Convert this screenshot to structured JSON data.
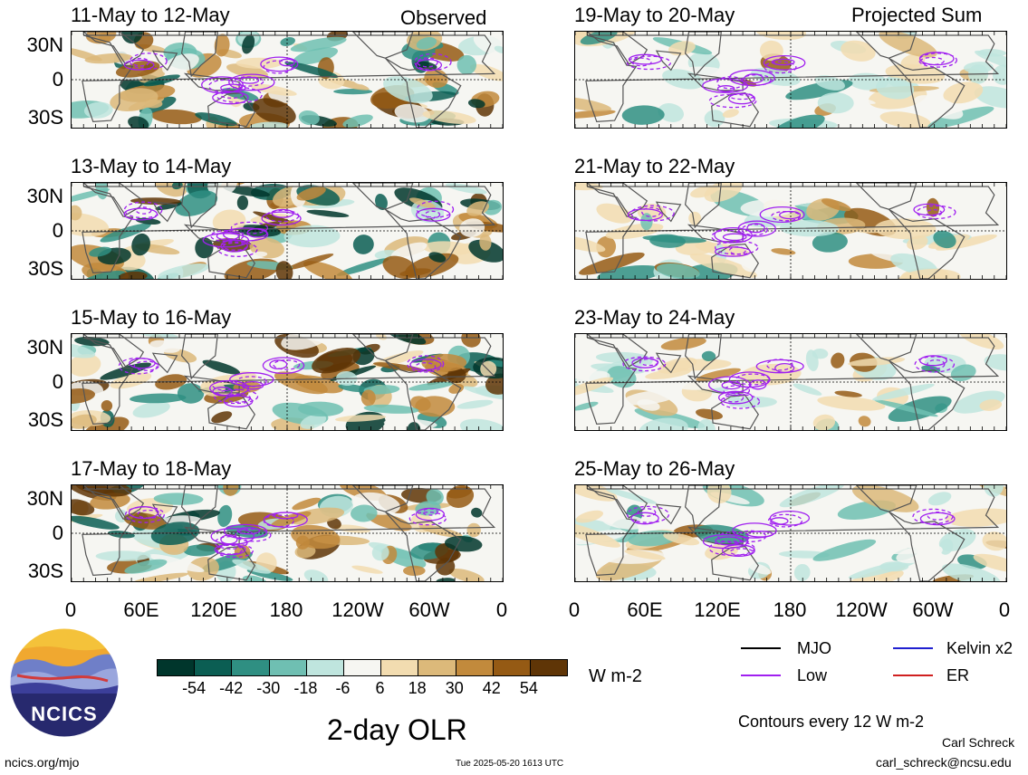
{
  "column_headers": {
    "observed": "Observed",
    "projected": "Projected Sum"
  },
  "colors": {
    "neg3": "#00473a",
    "neg2": "#1f7d6e",
    "neg1": "#7fc9bc",
    "neutral": "#f7f7f2",
    "pos1": "#f0d7a6",
    "pos2": "#c98d34",
    "pos3": "#6b3a05",
    "mjo": "#000000",
    "low": "#a020f0",
    "kelvin": "#2020d0",
    "er": "#d02020",
    "land": "#555555"
  },
  "chart_data": [
    {
      "type": "heatmap",
      "title": "11-May to 12-May",
      "kind": "observed"
    },
    {
      "type": "heatmap",
      "title": "13-May to 14-May",
      "kind": "observed"
    },
    {
      "type": "heatmap",
      "title": "15-May to 16-May",
      "kind": "observed"
    },
    {
      "type": "heatmap",
      "title": "17-May to 18-May",
      "kind": "observed"
    },
    {
      "type": "heatmap",
      "title": "19-May to 20-May",
      "kind": "projected"
    },
    {
      "type": "heatmap",
      "title": "21-May to 22-May",
      "kind": "projected"
    },
    {
      "type": "heatmap",
      "title": "23-May to 24-May",
      "kind": "projected"
    },
    {
      "type": "heatmap",
      "title": "25-May to 26-May",
      "kind": "projected"
    }
  ],
  "axes": {
    "lat_labels": [
      "30N",
      "0",
      "30S"
    ],
    "lon_labels": [
      "0",
      "60E",
      "120E",
      "180",
      "120W",
      "60W",
      "0"
    ]
  },
  "colorbar": {
    "ticks": [
      "-54",
      "-42",
      "-30",
      "-18",
      "-6",
      "6",
      "18",
      "30",
      "42",
      "54"
    ],
    "bins": [
      "#00362c",
      "#0b5e53",
      "#2f8f82",
      "#6fbfb2",
      "#bfe5de",
      "#f6f6f2",
      "#f2dcb0",
      "#dcb97a",
      "#c28a3c",
      "#955a14",
      "#5f3506"
    ],
    "unit": "W m-2"
  },
  "legend": {
    "items": [
      {
        "label": "MJO",
        "color": "#000000"
      },
      {
        "label": "Kelvin x2",
        "color": "#2020d0"
      },
      {
        "label": "Low",
        "color": "#a020f0"
      },
      {
        "label": "ER",
        "color": "#d02020"
      }
    ],
    "contours_note": "Contours every 12 W m-2"
  },
  "footer": {
    "main_title": "2-day OLR",
    "logo_text": "NCICS",
    "url": "ncics.org/mjo",
    "timestamp": "Tue 2025-05-20 1613 UTC",
    "author": "Carl Schreck",
    "email": "carl_schreck@ncsu.edu"
  }
}
